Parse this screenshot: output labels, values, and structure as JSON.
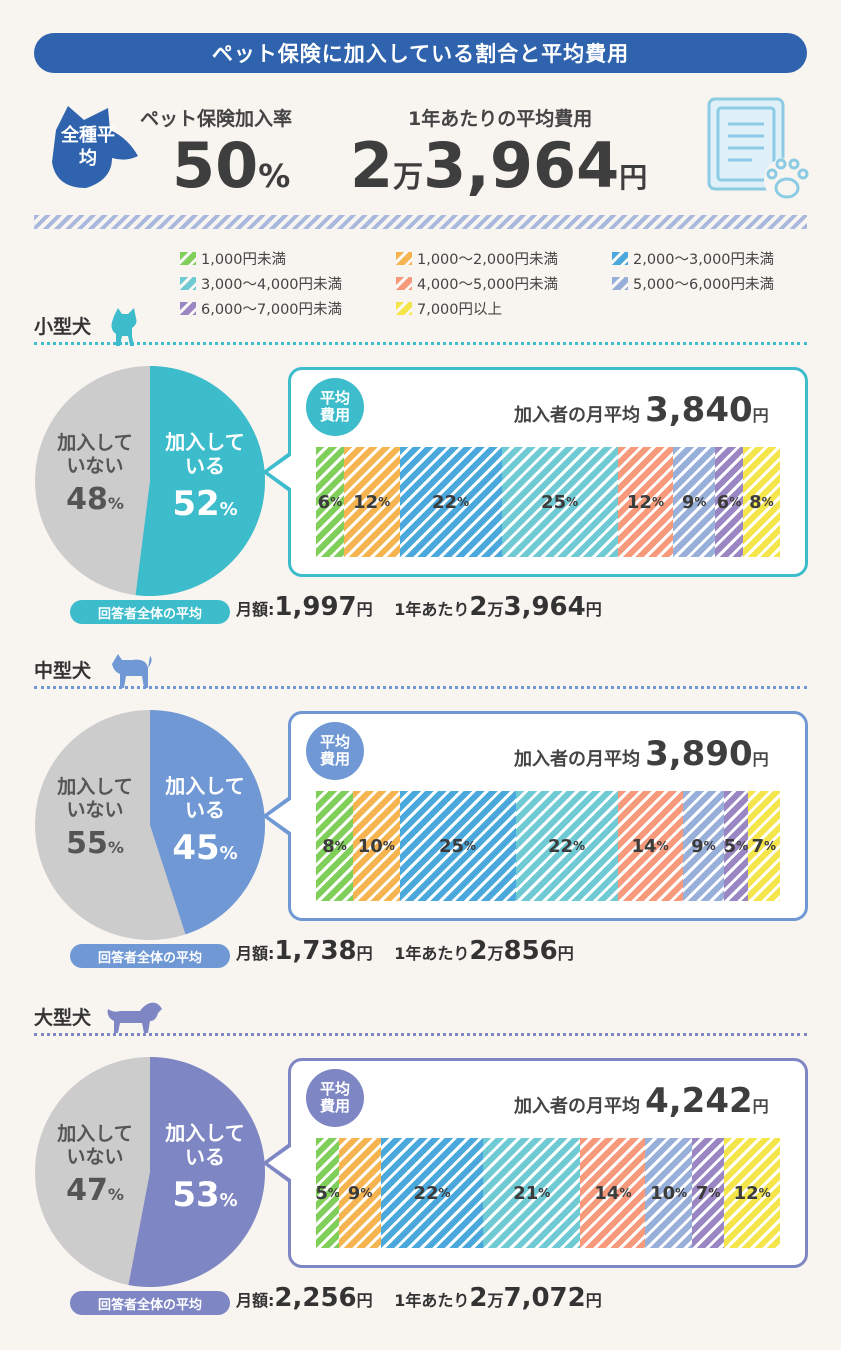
{
  "title": "ペット保険に加入している割合と平均費用",
  "overall": {
    "badge": "全種平均",
    "rate_label": "ペット保険加入率",
    "rate_value": "50",
    "rate_unit": "%",
    "cost_label": "1年あたりの平均費用",
    "cost_prefix": "2",
    "cost_man": "万",
    "cost_value": "3,964",
    "cost_unit": "円"
  },
  "legend": [
    {
      "label": "1,000円未満",
      "color": "#7fcf5a"
    },
    {
      "label": "1,000〜2,000円未満",
      "color": "#f6b451"
    },
    {
      "label": "2,000〜3,000円未満",
      "color": "#4aa8dc"
    },
    {
      "label": "3,000〜4,000円未満",
      "color": "#6fcad3"
    },
    {
      "label": "4,000〜5,000円未満",
      "color": "#f79a7c"
    },
    {
      "label": "5,000〜6,000円未満",
      "color": "#98afd9"
    },
    {
      "label": "6,000〜7,000円未満",
      "color": "#9b86c4"
    },
    {
      "label": "7,000円以上",
      "color": "#f4e64a"
    }
  ],
  "labels": {
    "not_joined": "加入していない",
    "joined": "加入している",
    "badge": "平均費用",
    "monthly_avg": "加入者の月平均",
    "overall_avg": "回答者全体の平均",
    "monthly": "月額:",
    "yearly": "1年あたり",
    "man": "万",
    "yen": "円",
    "pct": "%"
  },
  "chart_data": [
    {
      "type": "pie",
      "name": "小型犬",
      "categories": [
        "加入している",
        "加入していない"
      ],
      "values": [
        52,
        48
      ],
      "colors": [
        "#3dbdcc",
        "#cccccc"
      ]
    },
    {
      "type": "bar",
      "name": "小型犬",
      "title": "加入者の月平均 3,840円",
      "categories": [
        "1,000円未満",
        "1,000〜2,000円未満",
        "2,000〜3,000円未満",
        "3,000〜4,000円未満",
        "4,000〜5,000円未満",
        "5,000〜6,000円未満",
        "6,000〜7,000円未満",
        "7,000円以上"
      ],
      "values": [
        6,
        12,
        22,
        25,
        12,
        9,
        6,
        8
      ]
    },
    {
      "type": "pie",
      "name": "中型犬",
      "categories": [
        "加入している",
        "加入していない"
      ],
      "values": [
        45,
        55
      ],
      "colors": [
        "#6f98d4",
        "#cccccc"
      ]
    },
    {
      "type": "bar",
      "name": "中型犬",
      "title": "加入者の月平均 3,890円",
      "categories": [
        "1,000円未満",
        "1,000〜2,000円未満",
        "2,000〜3,000円未満",
        "3,000〜4,000円未満",
        "4,000〜5,000円未満",
        "5,000〜6,000円未満",
        "6,000〜7,000円未満",
        "7,000円以上"
      ],
      "values": [
        8,
        10,
        25,
        22,
        14,
        9,
        5,
        7
      ]
    },
    {
      "type": "pie",
      "name": "大型犬",
      "categories": [
        "加入している",
        "加入していない"
      ],
      "values": [
        53,
        47
      ],
      "colors": [
        "#7f86c4",
        "#cccccc"
      ]
    },
    {
      "type": "bar",
      "name": "大型犬",
      "title": "加入者の月平均 4,242円",
      "categories": [
        "1,000円未満",
        "1,000〜2,000円未満",
        "2,000〜3,000円未満",
        "3,000〜4,000円未満",
        "4,000〜5,000円未満",
        "5,000〜6,000円未満",
        "6,000〜7,000円未満",
        "7,000円以上"
      ],
      "values": [
        5,
        9,
        22,
        21,
        14,
        10,
        7,
        12
      ]
    }
  ],
  "sections": [
    {
      "title": "小型犬",
      "icon": "small-dog-icon",
      "accent": "#3dbdcc",
      "joined": "52",
      "not_joined": "48",
      "monthly_avg": "3,840",
      "overall_monthly": "1,997",
      "overall_yearly_man": "2",
      "overall_yearly_rest": "3,964",
      "segments": [
        6,
        12,
        22,
        25,
        12,
        9,
        6,
        8
      ]
    },
    {
      "title": "中型犬",
      "icon": "medium-dog-icon",
      "accent": "#6f98d4",
      "joined": "45",
      "not_joined": "55",
      "monthly_avg": "3,890",
      "overall_monthly": "1,738",
      "overall_yearly_man": "2",
      "overall_yearly_rest": "856",
      "segments": [
        8,
        10,
        25,
        22,
        14,
        9,
        5,
        7
      ]
    },
    {
      "title": "大型犬",
      "icon": "large-dog-icon",
      "accent": "#7f86c4",
      "joined": "53",
      "not_joined": "47",
      "monthly_avg": "4,242",
      "overall_monthly": "2,256",
      "overall_yearly_man": "2",
      "overall_yearly_rest": "7,072",
      "segments": [
        5,
        9,
        22,
        21,
        14,
        10,
        7,
        12
      ]
    }
  ]
}
